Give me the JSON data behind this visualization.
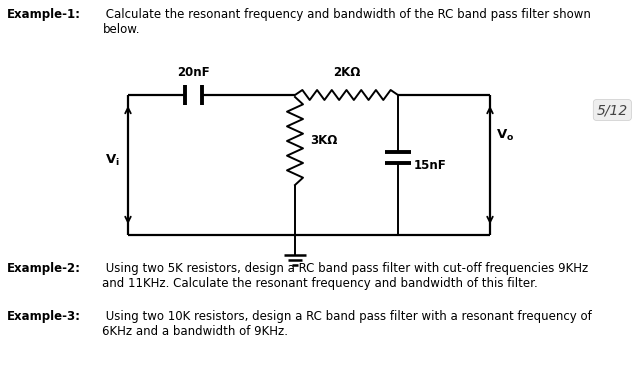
{
  "bg_color": "#ffffff",
  "example1_bold": "Example-1:",
  "example1_rest": " Calculate the resonant frequency and bandwidth of the RC band pass filter shown\nbelow.",
  "example2_bold": "Example-2:",
  "example2_rest": " Using two 5K resistors, design a RC band pass filter with cut-off frequencies 9KHz\nand 11KHz. Calculate the resonant frequency and bandwidth of this filter.",
  "example3_bold": "Example-3:",
  "example3_rest": " Using two 10K resistors, design a RC band pass filter with a resonant frequency of\n6KHz and a bandwidth of 9KHz.",
  "page_label": "5/12",
  "label_20nF": "20nF",
  "label_2KO": "2KΩ",
  "label_3KO": "3KΩ",
  "label_15nF": "15nF",
  "font_size_text": 8.5,
  "font_size_circ": 8.5,
  "font_size_page": 10
}
